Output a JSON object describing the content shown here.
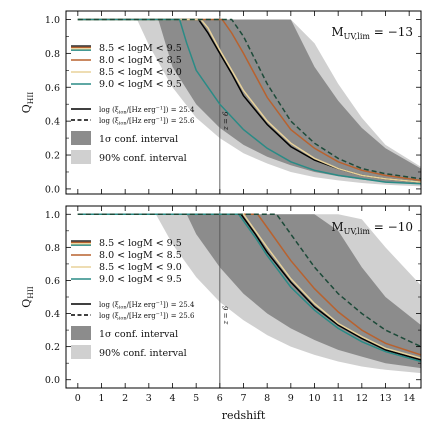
{
  "chart_data": [
    {
      "type": "line",
      "panel_label": "M",
      "panel_label_sub": "UV,lim",
      "panel_label_value": " = −13",
      "xlabel": "",
      "ylabel": "Q",
      "ylabel_sub": "HII",
      "xlim": [
        -0.5,
        14.5
      ],
      "ylim": [
        -0.03,
        1.05
      ],
      "yticks": [
        "0.0",
        "0.2",
        "0.4",
        "0.6",
        "0.8",
        "1.0"
      ],
      "xticks": [],
      "z6_label": "z = 6",
      "z6": 6,
      "legend": {
        "mass_bins": [
          "8.5 < logM < 9.5",
          "8.0 < logM < 8.5",
          "8.5 < logM < 9.0",
          "9.0 < logM < 9.5"
        ],
        "xi_solid": "log (ξ",
        "xi_sub": "ion",
        "xi_solid_rest": "/[Hz erg",
        "xi_sup": "−1",
        "xi_solid_end": "]) = 25.4",
        "xi_dashed_end": "]) = 25.6",
        "band_1sigma": "1σ conf. interval",
        "band_90": "90% conf. interval"
      },
      "bands": [
        {
          "name": "90%",
          "x": [
            0,
            2.5,
            3,
            4,
            5,
            6,
            7,
            8,
            9,
            10,
            11,
            12,
            13,
            14.5
          ],
          "lower": [
            1.0,
            1.0,
            0.85,
            0.6,
            0.42,
            0.3,
            0.21,
            0.15,
            0.1,
            0.07,
            0.05,
            0.035,
            0.025,
            0.015
          ],
          "upper": [
            1.0,
            1.0,
            1.0,
            1.0,
            1.0,
            1.0,
            1.0,
            1.0,
            1.0,
            0.86,
            0.62,
            0.42,
            0.26,
            0.13
          ]
        },
        {
          "name": "1σ",
          "x": [
            0,
            3.4,
            4,
            5,
            6,
            7,
            8,
            9,
            10,
            11,
            12,
            13,
            14.5
          ],
          "lower": [
            1.0,
            1.0,
            0.72,
            0.5,
            0.36,
            0.26,
            0.19,
            0.14,
            0.1,
            0.075,
            0.055,
            0.04,
            0.03
          ],
          "upper": [
            1.0,
            1.0,
            1.0,
            1.0,
            1.0,
            1.0,
            1.0,
            1.0,
            0.72,
            0.52,
            0.36,
            0.24,
            0.12
          ]
        }
      ],
      "series": [
        {
          "name": "8.5 < logM < 9.5",
          "color": "#000000",
          "dash": false,
          "x": [
            0,
            5.1,
            5.5,
            6,
            6.5,
            7,
            8,
            9,
            10,
            11,
            12,
            13,
            14.5
          ],
          "y": [
            1.0,
            1.0,
            0.92,
            0.8,
            0.68,
            0.55,
            0.38,
            0.25,
            0.17,
            0.12,
            0.08,
            0.06,
            0.04
          ]
        },
        {
          "name": "8.0 < logM < 8.5",
          "color": "#b8622f",
          "dash": false,
          "x": [
            0,
            6.1,
            6.5,
            7,
            8,
            9,
            10,
            11,
            12,
            13,
            14.5
          ],
          "y": [
            1.0,
            1.0,
            0.92,
            0.8,
            0.54,
            0.35,
            0.24,
            0.16,
            0.11,
            0.08,
            0.05
          ]
        },
        {
          "name": "8.5 < logM < 9.0",
          "color": "#e8d29a",
          "dash": false,
          "x": [
            0,
            5.2,
            5.5,
            6,
            6.5,
            7,
            8,
            9,
            10,
            11,
            12,
            13,
            14.5
          ],
          "y": [
            1.0,
            1.0,
            0.95,
            0.82,
            0.7,
            0.58,
            0.4,
            0.27,
            0.18,
            0.12,
            0.08,
            0.06,
            0.04
          ]
        },
        {
          "name": "9.0 < logM < 9.5",
          "color": "#2a8b86",
          "dash": false,
          "x": [
            0,
            4.3,
            4.6,
            5,
            6,
            7,
            8,
            9,
            10,
            11,
            12,
            13,
            14.5
          ],
          "y": [
            1.0,
            1.0,
            0.86,
            0.7,
            0.5,
            0.35,
            0.24,
            0.16,
            0.11,
            0.08,
            0.06,
            0.04,
            0.03
          ]
        },
        {
          "name": "25.6 dashed",
          "color": "#1d4a39",
          "dash": true,
          "x": [
            0,
            6.5,
            7,
            8,
            9,
            10,
            11,
            12,
            13,
            14.5
          ],
          "y": [
            1.0,
            1.0,
            0.9,
            0.62,
            0.4,
            0.27,
            0.18,
            0.12,
            0.09,
            0.06
          ]
        }
      ]
    },
    {
      "type": "line",
      "panel_label": "M",
      "panel_label_sub": "UV,lim",
      "panel_label_value": " = −10",
      "xlabel": "redshift",
      "ylabel": "Q",
      "ylabel_sub": "HII",
      "xlim": [
        -0.5,
        14.5
      ],
      "ylim": [
        -0.05,
        1.05
      ],
      "yticks": [
        "0.0",
        "0.2",
        "0.4",
        "0.6",
        "0.8",
        "1.0"
      ],
      "xticks": [
        "0",
        "1",
        "2",
        "3",
        "4",
        "5",
        "6",
        "7",
        "8",
        "9",
        "10",
        "11",
        "12",
        "13",
        "14"
      ],
      "z6_label": "z = 6",
      "z6": 6,
      "legend": {
        "mass_bins": [
          "8.5 < logM < 9.5",
          "8.0 < logM < 8.5",
          "8.5 < logM < 9.0",
          "9.0 < logM < 9.5"
        ],
        "xi_solid": "log (ξ",
        "xi_sub": "ion",
        "xi_solid_rest": "/[Hz erg",
        "xi_sup": "−1",
        "xi_solid_end": "]) = 25.4",
        "xi_dashed_end": "]) = 25.6",
        "band_1sigma": "1σ conf. interval",
        "band_90": "90% conf. interval"
      },
      "bands": [
        {
          "name": "90%",
          "x": [
            0,
            3.3,
            4,
            5,
            6,
            7,
            8,
            9,
            10,
            11,
            12,
            13,
            14.5
          ],
          "lower": [
            1.0,
            1.0,
            0.82,
            0.62,
            0.47,
            0.36,
            0.27,
            0.2,
            0.15,
            0.11,
            0.08,
            0.06,
            0.04
          ],
          "upper": [
            1.0,
            1.0,
            1.0,
            1.0,
            1.0,
            1.0,
            1.0,
            1.0,
            1.0,
            1.0,
            0.97,
            0.8,
            0.57
          ]
        },
        {
          "name": "1σ",
          "x": [
            0,
            4.6,
            5,
            6,
            7,
            8,
            9,
            10,
            11,
            12,
            13,
            14.5
          ],
          "lower": [
            1.0,
            1.0,
            0.88,
            0.68,
            0.52,
            0.4,
            0.31,
            0.24,
            0.18,
            0.14,
            0.1,
            0.07
          ],
          "upper": [
            1.0,
            1.0,
            1.0,
            1.0,
            1.0,
            1.0,
            1.0,
            1.0,
            0.9,
            0.68,
            0.5,
            0.33
          ]
        }
      ],
      "series": [
        {
          "name": "8.5 < logM < 9.5",
          "color": "#000000",
          "dash": false,
          "x": [
            0,
            6.9,
            7.5,
            8,
            9,
            10,
            11,
            12,
            13,
            14.5
          ],
          "y": [
            1.0,
            1.0,
            0.88,
            0.77,
            0.59,
            0.44,
            0.33,
            0.25,
            0.18,
            0.12
          ]
        },
        {
          "name": "8.0 < logM < 8.5",
          "color": "#b8622f",
          "dash": false,
          "x": [
            0,
            7.6,
            8,
            9,
            10,
            11,
            12,
            13,
            14.5
          ],
          "y": [
            1.0,
            1.0,
            0.92,
            0.72,
            0.55,
            0.41,
            0.3,
            0.22,
            0.15
          ]
        },
        {
          "name": "8.5 < logM < 9.0",
          "color": "#e8d29a",
          "dash": false,
          "x": [
            0,
            7.0,
            7.5,
            8,
            9,
            10,
            11,
            12,
            13,
            14.5
          ],
          "y": [
            1.0,
            1.0,
            0.9,
            0.8,
            0.61,
            0.46,
            0.34,
            0.26,
            0.19,
            0.13
          ]
        },
        {
          "name": "9.0 < logM < 9.5",
          "color": "#2a8b86",
          "dash": false,
          "x": [
            0,
            6.8,
            7.5,
            8,
            9,
            10,
            11,
            12,
            13,
            14.5
          ],
          "y": [
            1.0,
            1.0,
            0.86,
            0.75,
            0.56,
            0.42,
            0.31,
            0.23,
            0.17,
            0.11
          ]
        },
        {
          "name": "25.6 dashed",
          "color": "#1d4a39",
          "dash": true,
          "x": [
            0,
            8.4,
            9,
            10,
            11,
            12,
            13,
            14.5
          ],
          "y": [
            1.0,
            1.0,
            0.88,
            0.68,
            0.52,
            0.4,
            0.3,
            0.2
          ]
        }
      ]
    }
  ]
}
